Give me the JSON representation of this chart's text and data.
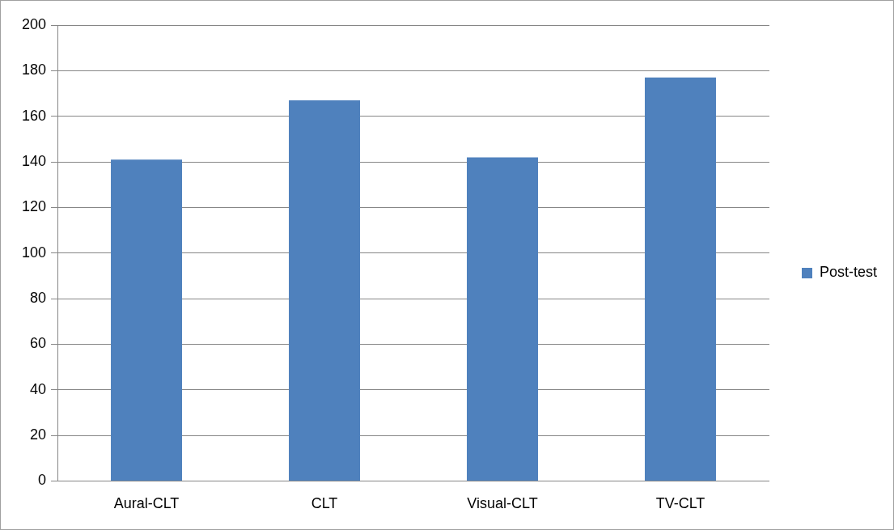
{
  "chart_data": {
    "type": "bar",
    "categories": [
      "Aural-CLT",
      "CLT",
      "Visual-CLT",
      "TV-CLT"
    ],
    "series": [
      {
        "name": "Post-test",
        "color": "#4f81bd",
        "values": [
          141,
          167,
          142,
          177
        ]
      }
    ],
    "ylim": [
      0,
      200
    ],
    "yticks": [
      0,
      20,
      40,
      60,
      80,
      100,
      120,
      140,
      160,
      180,
      200
    ],
    "grid": "y",
    "legend": "right"
  }
}
